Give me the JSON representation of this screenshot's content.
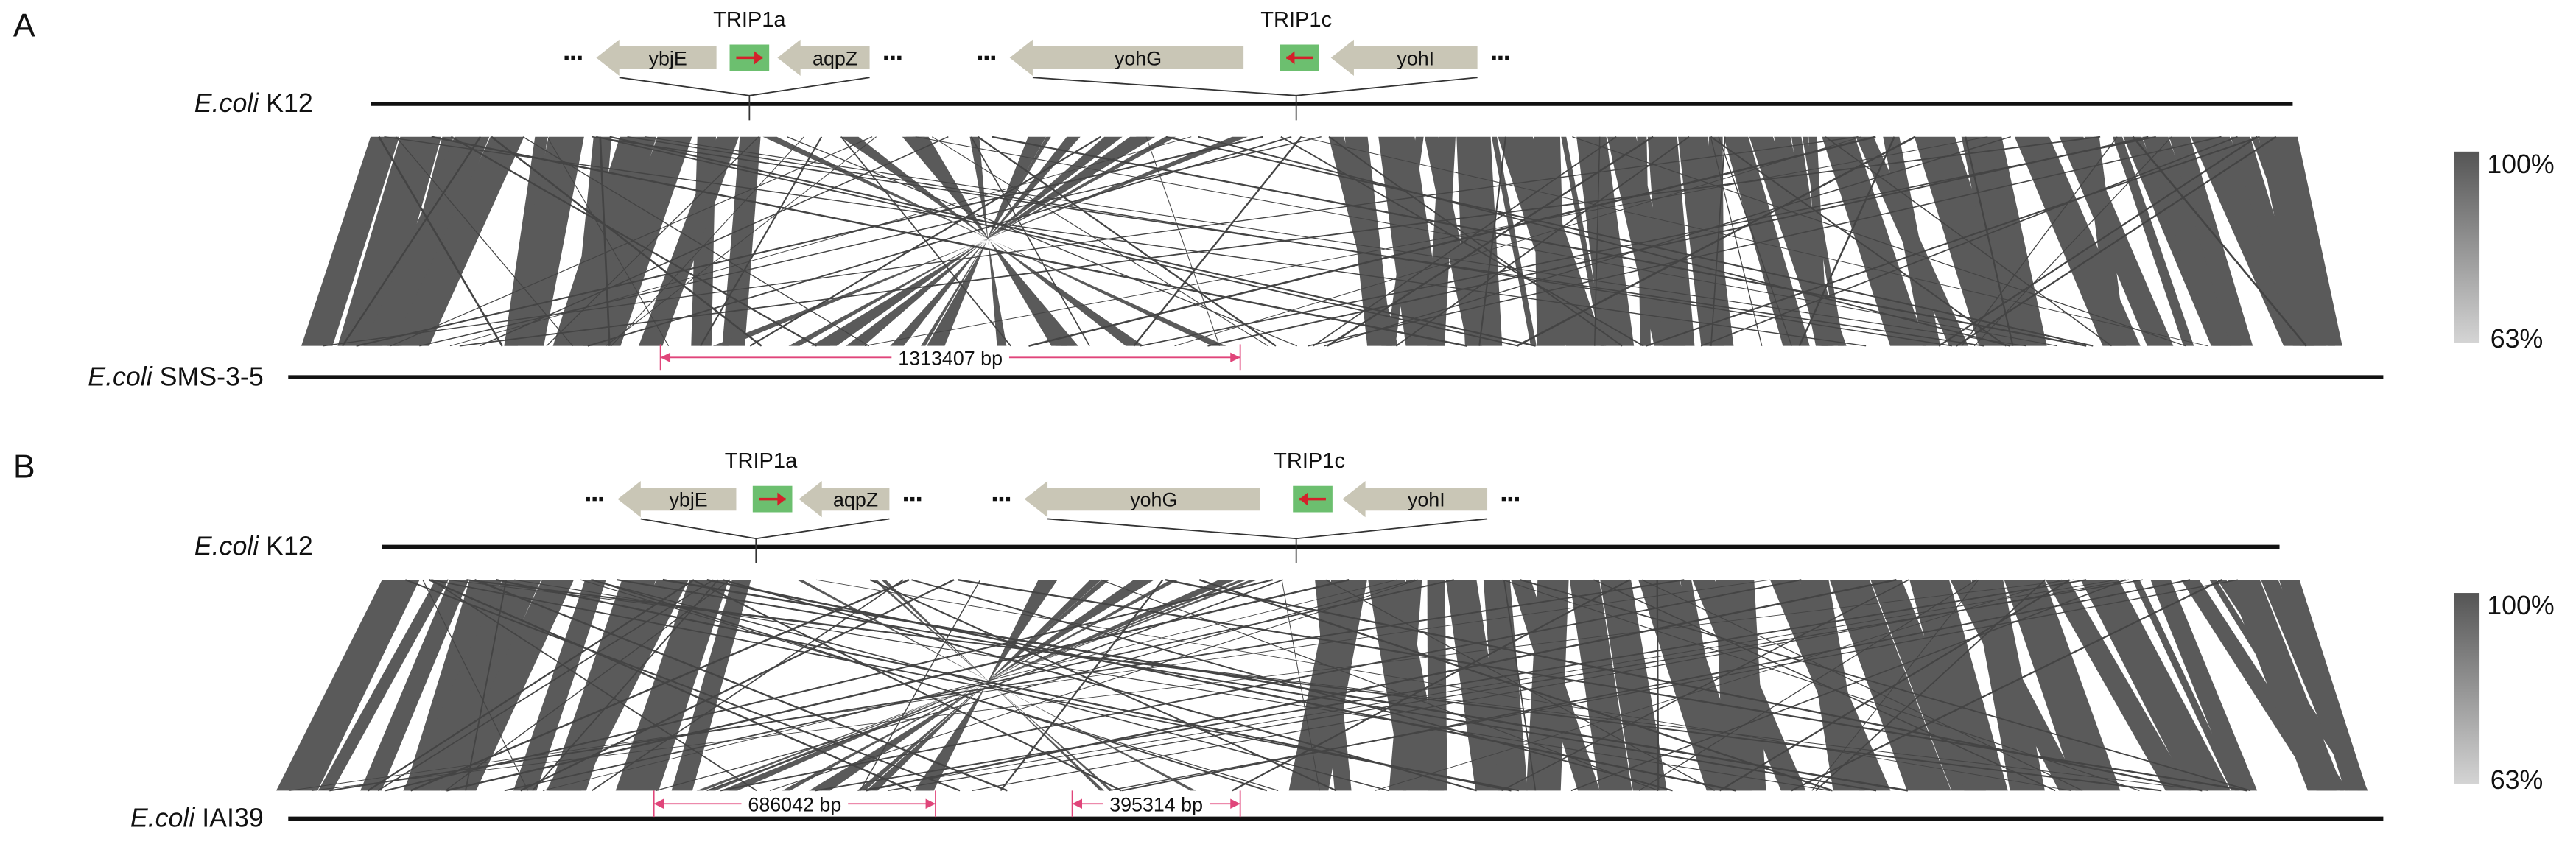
{
  "panels": [
    {
      "label": "A",
      "upper_genome": {
        "species": "E.coli",
        "strain": "K12"
      },
      "lower_genome": {
        "species": "E.coli",
        "strain": "SMS-3-5"
      },
      "loci": [
        {
          "name": "TRIP1a",
          "genes": [
            "ybjE",
            "aqpZ"
          ]
        },
        {
          "name": "TRIP1c",
          "genes": [
            "yohG",
            "yohI"
          ]
        }
      ],
      "spans": [
        "1313407 bp"
      ],
      "scale": {
        "max": "100%",
        "min": "63%"
      }
    },
    {
      "label": "B",
      "upper_genome": {
        "species": "E.coli",
        "strain": "K12"
      },
      "lower_genome": {
        "species": "E.coli",
        "strain": "IAI39"
      },
      "loci": [
        {
          "name": "TRIP1a",
          "genes": [
            "ybjE",
            "aqpZ"
          ]
        },
        {
          "name": "TRIP1c",
          "genes": [
            "yohG",
            "yohI"
          ]
        }
      ],
      "spans": [
        "686042 bp",
        "395314 bp"
      ],
      "scale": {
        "max": "100%",
        "min": "63%"
      }
    }
  ]
}
